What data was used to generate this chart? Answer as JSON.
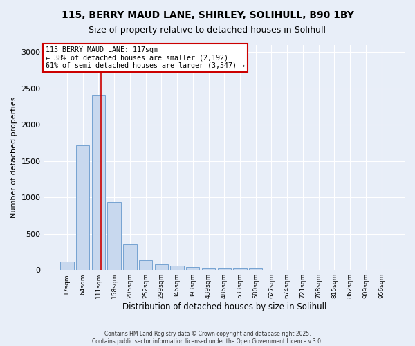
{
  "title1": "115, BERRY MAUD LANE, SHIRLEY, SOLIHULL, B90 1BY",
  "title2": "Size of property relative to detached houses in Solihull",
  "xlabel": "Distribution of detached houses by size in Solihull",
  "ylabel": "Number of detached properties",
  "bin_labels": [
    "17sqm",
    "64sqm",
    "111sqm",
    "158sqm",
    "205sqm",
    "252sqm",
    "299sqm",
    "346sqm",
    "393sqm",
    "439sqm",
    "486sqm",
    "533sqm",
    "580sqm",
    "627sqm",
    "674sqm",
    "721sqm",
    "768sqm",
    "815sqm",
    "862sqm",
    "909sqm",
    "956sqm"
  ],
  "bar_values": [
    120,
    1720,
    2400,
    940,
    350,
    140,
    80,
    55,
    40,
    25,
    25,
    20,
    20,
    0,
    0,
    0,
    0,
    0,
    0,
    0,
    0
  ],
  "bar_color": "#c8d8ee",
  "bar_edge_color": "#6699cc",
  "vline_x": 2.17,
  "vline_color": "#cc0000",
  "annotation_text": "115 BERRY MAUD LANE: 117sqm\n← 38% of detached houses are smaller (2,192)\n61% of semi-detached houses are larger (3,547) →",
  "annotation_box_color": "#cc0000",
  "ylim": [
    0,
    3100
  ],
  "footer1": "Contains HM Land Registry data © Crown copyright and database right 2025.",
  "footer2": "Contains public sector information licensed under the Open Government Licence v.3.0.",
  "background_color": "#e8eef8",
  "grid_color": "#ffffff",
  "title_fontsize": 10,
  "subtitle_fontsize": 9
}
